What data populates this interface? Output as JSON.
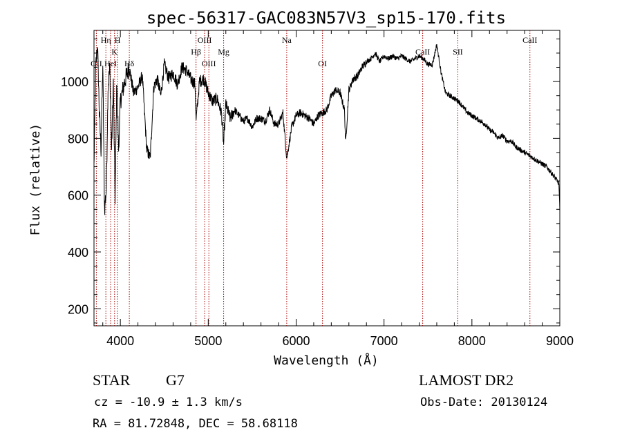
{
  "chart_data": {
    "type": "line",
    "title": "spec-56317-GAC083N57V3_sp15-170.fits",
    "xlabel": "Wavelength (Å)",
    "ylabel": "Flux (relative)",
    "xlim": [
      3700,
      9000
    ],
    "ylim": [
      140,
      1180
    ],
    "xticks": [
      4000,
      5000,
      6000,
      7000,
      8000,
      9000
    ],
    "yticks": [
      200,
      400,
      600,
      800,
      1000
    ],
    "grid": false,
    "line_color": "#000000",
    "marker_color": "#aa0000",
    "series": [
      {
        "x": [
          3700,
          3720,
          3740,
          3760,
          3780,
          3800,
          3820,
          3840,
          3860,
          3880,
          3900,
          3920,
          3940,
          3960,
          3980,
          4000,
          4050,
          4100,
          4150,
          4200,
          4250,
          4300,
          4340,
          4380,
          4420,
          4460,
          4500,
          4550,
          4600,
          4650,
          4700,
          4750,
          4800,
          4850,
          4861,
          4900,
          4950,
          5000,
          5050,
          5100,
          5150,
          5175,
          5200,
          5250,
          5300,
          5350,
          5400,
          5450,
          5500,
          5550,
          5600,
          5650,
          5700,
          5750,
          5800,
          5850,
          5893,
          5950,
          6000,
          6050,
          6100,
          6150,
          6200,
          6250,
          6300,
          6350,
          6400,
          6450,
          6500,
          6550,
          6563,
          6600,
          6650,
          6700,
          6750,
          6800,
          6850,
          6900,
          6950,
          7000,
          7050,
          7100,
          7150,
          7200,
          7250,
          7300,
          7350,
          7400,
          7450,
          7500,
          7550,
          7600,
          7650,
          7700,
          7750,
          7800,
          7850,
          7900,
          7950,
          8000,
          8050,
          8100,
          8150,
          8200,
          8250,
          8300,
          8350,
          8400,
          8450,
          8500,
          8550,
          8600,
          8650,
          8700,
          8750,
          8800,
          8850,
          8900,
          8950,
          8990,
          9000
        ],
        "y": [
          700,
          1050,
          1130,
          900,
          760,
          1060,
          550,
          620,
          980,
          1050,
          760,
          1000,
          590,
          1010,
          760,
          930,
          1000,
          1050,
          960,
          980,
          1020,
          760,
          730,
          980,
          1010,
          950,
          1060,
          1010,
          1030,
          990,
          1050,
          1040,
          1010,
          990,
          860,
          1000,
          1010,
          960,
          930,
          940,
          890,
          780,
          920,
          870,
          900,
          880,
          860,
          870,
          840,
          870,
          870,
          860,
          900,
          850,
          850,
          890,
          730,
          840,
          880,
          890,
          880,
          870,
          850,
          880,
          890,
          900,
          950,
          970,
          960,
          900,
          780,
          970,
          1010,
          1020,
          1050,
          1070,
          1080,
          1100,
          1070,
          1090,
          1080,
          1090,
          1080,
          1090,
          1080,
          1070,
          1080,
          1090,
          1080,
          1060,
          1060,
          1130,
          1030,
          960,
          950,
          940,
          930,
          910,
          890,
          880,
          870,
          860,
          850,
          830,
          820,
          800,
          810,
          790,
          790,
          770,
          760,
          750,
          740,
          730,
          720,
          710,
          700,
          680,
          660,
          640,
          540
        ]
      }
    ],
    "lines": [
      {
        "label": "OII",
        "x": 3727,
        "row": "lower"
      },
      {
        "label": "Hη",
        "x": 3835,
        "row": "upper"
      },
      {
        "label": "HeI",
        "x": 3889,
        "row": "lower"
      },
      {
        "label": "K",
        "x": 3934,
        "row": "middle"
      },
      {
        "label": "H",
        "x": 3968,
        "row": "upper"
      },
      {
        "label": "Hδ",
        "x": 4102,
        "row": "lower"
      },
      {
        "label": "Hβ",
        "x": 4861,
        "row": "middle"
      },
      {
        "label": "OIII",
        "x": 4959,
        "row": "upper"
      },
      {
        "label": "OIII",
        "x": 5007,
        "row": "lower"
      },
      {
        "label": "Mg",
        "x": 5175,
        "row": "middle"
      },
      {
        "label": "Na",
        "x": 5893,
        "row": "upper"
      },
      {
        "label": "OI",
        "x": 6300,
        "row": "lower"
      },
      {
        "label": "CaII",
        "x": 7440,
        "row": "middle"
      },
      {
        "label": "SII",
        "x": 7840,
        "row": "middle"
      },
      {
        "label": "CaII",
        "x": 8660,
        "row": "upper"
      }
    ]
  },
  "footer": {
    "object_class": "STAR",
    "subclass": "G7",
    "survey": "LAMOST DR2",
    "cz": "cz = -10.9 ± 1.3 km/s",
    "obs_date": "Obs-Date: 20130124",
    "radec": "RA =  81.72848, DEC =  58.68118"
  }
}
